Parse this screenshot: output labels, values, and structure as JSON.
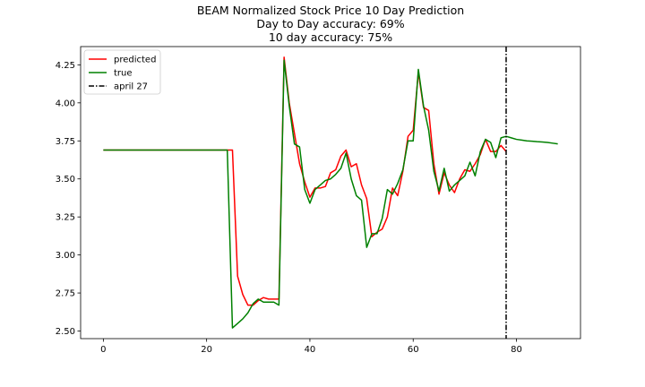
{
  "chart_data": {
    "type": "line",
    "title_lines": [
      "BEAM Normalized Stock Price 10 Day Prediction",
      "Day to Day accuracy: 69%",
      "10 day accuracy: 75%"
    ],
    "xlabel": "",
    "ylabel": "",
    "xlim": [
      -4.4,
      92.4
    ],
    "ylim": [
      2.45,
      4.37
    ],
    "x_ticks": [
      0,
      20,
      40,
      60,
      80
    ],
    "y_ticks": [
      2.5,
      2.75,
      3.0,
      3.25,
      3.5,
      3.75,
      4.0,
      4.25
    ],
    "x_tick_labels": [
      "0",
      "20",
      "40",
      "60",
      "80"
    ],
    "y_tick_labels": [
      "2.50",
      "2.75",
      "3.00",
      "3.25",
      "3.50",
      "3.75",
      "4.00",
      "4.25"
    ],
    "grid": false,
    "legend_position": "upper-left",
    "series": [
      {
        "name": "predicted",
        "color": "#ff0000",
        "x": [
          0,
          1,
          2,
          3,
          4,
          5,
          6,
          7,
          8,
          9,
          10,
          11,
          12,
          13,
          14,
          15,
          16,
          17,
          18,
          19,
          20,
          21,
          22,
          23,
          24,
          25,
          26,
          27,
          28,
          29,
          30,
          31,
          32,
          33,
          34,
          35,
          36,
          37,
          38,
          39,
          40,
          41,
          42,
          43,
          44,
          45,
          46,
          47,
          48,
          49,
          50,
          51,
          52,
          53,
          54,
          55,
          56,
          57,
          58,
          59,
          60,
          61,
          62,
          63,
          64,
          65,
          66,
          67,
          68,
          69,
          70,
          71,
          72,
          73,
          74,
          75,
          76,
          77,
          78
        ],
        "y": [
          3.69,
          3.69,
          3.69,
          3.69,
          3.69,
          3.69,
          3.69,
          3.69,
          3.69,
          3.69,
          3.69,
          3.69,
          3.69,
          3.69,
          3.69,
          3.69,
          3.69,
          3.69,
          3.69,
          3.69,
          3.69,
          3.69,
          3.69,
          3.69,
          3.69,
          3.69,
          2.86,
          2.74,
          2.67,
          2.67,
          2.7,
          2.72,
          2.71,
          2.71,
          2.71,
          4.3,
          4.0,
          3.8,
          3.6,
          3.48,
          3.38,
          3.44,
          3.44,
          3.45,
          3.54,
          3.56,
          3.65,
          3.69,
          3.58,
          3.6,
          3.46,
          3.37,
          3.12,
          3.15,
          3.17,
          3.25,
          3.44,
          3.39,
          3.55,
          3.78,
          3.82,
          4.2,
          3.97,
          3.95,
          3.6,
          3.4,
          3.54,
          3.46,
          3.41,
          3.5,
          3.56,
          3.55,
          3.6,
          3.66,
          3.76,
          3.68,
          3.68,
          3.72,
          3.68
        ]
      },
      {
        "name": "true",
        "color": "#008000",
        "x": [
          0,
          1,
          2,
          3,
          4,
          5,
          6,
          7,
          8,
          9,
          10,
          11,
          12,
          13,
          14,
          15,
          16,
          17,
          18,
          19,
          20,
          21,
          22,
          23,
          24,
          25,
          26,
          27,
          28,
          29,
          30,
          31,
          32,
          33,
          34,
          35,
          36,
          37,
          38,
          39,
          40,
          41,
          42,
          43,
          44,
          45,
          46,
          47,
          48,
          49,
          50,
          51,
          52,
          53,
          54,
          55,
          56,
          57,
          58,
          59,
          60,
          61,
          62,
          63,
          64,
          65,
          66,
          67,
          68,
          69,
          70,
          71,
          72,
          73,
          74,
          75,
          76,
          77,
          78,
          79,
          80,
          81,
          82,
          83,
          84,
          85,
          86,
          87,
          88
        ],
        "y": [
          3.69,
          3.69,
          3.69,
          3.69,
          3.69,
          3.69,
          3.69,
          3.69,
          3.69,
          3.69,
          3.69,
          3.69,
          3.69,
          3.69,
          3.69,
          3.69,
          3.69,
          3.69,
          3.69,
          3.69,
          3.69,
          3.69,
          3.69,
          3.69,
          3.69,
          2.52,
          2.55,
          2.58,
          2.62,
          2.68,
          2.71,
          2.69,
          2.69,
          2.69,
          2.67,
          4.28,
          3.98,
          3.73,
          3.71,
          3.43,
          3.34,
          3.43,
          3.46,
          3.49,
          3.5,
          3.53,
          3.57,
          3.67,
          3.5,
          3.39,
          3.36,
          3.05,
          3.14,
          3.14,
          3.24,
          3.43,
          3.4,
          3.47,
          3.56,
          3.75,
          3.75,
          4.22,
          3.98,
          3.82,
          3.55,
          3.42,
          3.57,
          3.42,
          3.46,
          3.49,
          3.52,
          3.61,
          3.52,
          3.68,
          3.76,
          3.74,
          3.64,
          3.77,
          3.78,
          3.77,
          3.76,
          3.755,
          3.75,
          3.748,
          3.745,
          3.743,
          3.74,
          3.735,
          3.73
        ]
      }
    ],
    "vertical_marker": {
      "name": "april 27",
      "x": 78,
      "color": "#000000",
      "style": "dash-dot"
    },
    "legend_entries": [
      "predicted",
      "true",
      "april 27"
    ]
  }
}
